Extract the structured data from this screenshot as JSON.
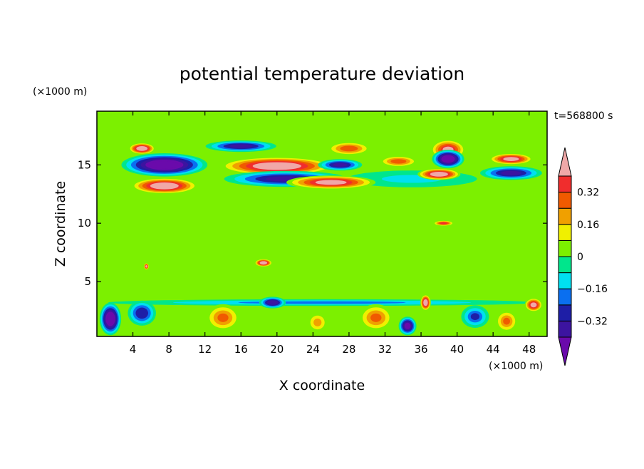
{
  "chart_data": {
    "type": "heatmap",
    "subtype": "filled-contour",
    "title": "potential temperature deviation",
    "xlabel": "X coordinate",
    "ylabel": "Z coordinate",
    "x_unit": "(×1000 m)",
    "z_unit": "(×1000 m)",
    "time_label": "t=568800 s",
    "xlim": [
      0,
      50
    ],
    "ylim": [
      0.3,
      19.6
    ],
    "x_ticks": [
      4,
      8,
      12,
      16,
      20,
      24,
      28,
      32,
      36,
      40,
      44,
      48
    ],
    "y_ticks": [
      5,
      10,
      15
    ],
    "colorbar": {
      "levels": [
        -0.48,
        -0.4,
        -0.32,
        -0.24,
        -0.16,
        -0.08,
        0,
        0.08,
        0.16,
        0.24,
        0.32,
        0.4,
        0.48
      ],
      "tick_labels": [
        {
          "value": 0.32,
          "label": "0.32"
        },
        {
          "value": 0.16,
          "label": "0.16"
        },
        {
          "value": 0,
          "label": "0"
        },
        {
          "value": -0.16,
          "label": "−0.16"
        },
        {
          "value": -0.32,
          "label": "−0.32"
        }
      ],
      "colors": [
        "#6a0aab",
        "#3c14a0",
        "#1e1ea6",
        "#0a6ff0",
        "#00e0f0",
        "#00e68c",
        "#7cf000",
        "#f0f000",
        "#f0a000",
        "#f05a00",
        "#f02d2d",
        "#f0a8a8"
      ],
      "extend": "both"
    },
    "background_color": "#7cf000",
    "features": [
      {
        "x": 7.5,
        "z": 15.0,
        "rx": 4.8,
        "rz": 1.0,
        "value": -0.52
      },
      {
        "x": 7.5,
        "z": 13.2,
        "rx": 3.8,
        "rz": 0.7,
        "value": 0.5
      },
      {
        "x": 5.0,
        "z": 16.4,
        "rx": 1.5,
        "rz": 0.5,
        "value": 0.5
      },
      {
        "x": 20.0,
        "z": 14.9,
        "rx": 6.5,
        "rz": 0.8,
        "value": 0.5
      },
      {
        "x": 26.0,
        "z": 13.5,
        "rx": 5.0,
        "rz": 0.6,
        "value": 0.45
      },
      {
        "x": 21.0,
        "z": 13.8,
        "rx": 7.0,
        "rz": 0.7,
        "value": -0.35
      },
      {
        "x": 16.0,
        "z": 16.6,
        "rx": 4.0,
        "rz": 0.5,
        "value": -0.35
      },
      {
        "x": 28.0,
        "z": 16.4,
        "rx": 2.5,
        "rz": 0.6,
        "value": 0.3
      },
      {
        "x": 27.0,
        "z": 15.0,
        "rx": 2.5,
        "rz": 0.5,
        "value": -0.35
      },
      {
        "x": 33.5,
        "z": 15.3,
        "rx": 2.2,
        "rz": 0.5,
        "value": 0.3
      },
      {
        "x": 39.0,
        "z": 16.3,
        "rx": 2.0,
        "rz": 0.9,
        "value": 0.4
      },
      {
        "x": 39.0,
        "z": 15.5,
        "rx": 1.8,
        "rz": 0.8,
        "value": -0.5
      },
      {
        "x": 38.0,
        "z": 14.2,
        "rx": 2.4,
        "rz": 0.5,
        "value": 0.5
      },
      {
        "x": 46.0,
        "z": 15.5,
        "rx": 2.5,
        "rz": 0.5,
        "value": 0.45
      },
      {
        "x": 46.0,
        "z": 14.3,
        "rx": 3.5,
        "rz": 0.6,
        "value": -0.35
      },
      {
        "x": 35.0,
        "z": 13.8,
        "rx": 8.0,
        "rz": 0.8,
        "value": -0.12
      },
      {
        "x": 25.0,
        "z": 12.3,
        "rx": 25.0,
        "rz": 0.5,
        "value": 0.02
      },
      {
        "x": 38.5,
        "z": 10.0,
        "rx": 1.2,
        "rz": 0.25,
        "value": 0.35
      },
      {
        "x": 18.5,
        "z": 6.6,
        "rx": 1.0,
        "rz": 0.35,
        "value": 0.5
      },
      {
        "x": 5.5,
        "z": 6.3,
        "rx": 0.3,
        "rz": 0.3,
        "value": 0.45
      },
      {
        "x": 1.5,
        "z": 1.8,
        "rx": 1.2,
        "rz": 1.4,
        "value": -0.52
      },
      {
        "x": 5.0,
        "z": 2.3,
        "rx": 1.6,
        "rz": 1.1,
        "value": -0.32
      },
      {
        "x": 14.0,
        "z": 1.9,
        "rx": 2.0,
        "rz": 1.2,
        "value": 0.26
      },
      {
        "x": 19.5,
        "z": 3.2,
        "rx": 1.5,
        "rz": 0.5,
        "value": -0.4
      },
      {
        "x": 24.5,
        "z": 1.5,
        "rx": 1.2,
        "rz": 0.9,
        "value": 0.2
      },
      {
        "x": 31.0,
        "z": 1.9,
        "rx": 2.0,
        "rz": 1.2,
        "value": 0.26
      },
      {
        "x": 34.5,
        "z": 1.2,
        "rx": 1.0,
        "rz": 0.8,
        "value": -0.45
      },
      {
        "x": 36.5,
        "z": 3.2,
        "rx": 0.6,
        "rz": 0.7,
        "value": 0.5
      },
      {
        "x": 42.0,
        "z": 2.0,
        "rx": 1.6,
        "rz": 1.0,
        "value": -0.25
      },
      {
        "x": 45.5,
        "z": 1.6,
        "rx": 1.3,
        "rz": 1.0,
        "value": 0.25
      },
      {
        "x": 48.5,
        "z": 3.0,
        "rx": 1.0,
        "rz": 0.6,
        "value": 0.45
      },
      {
        "x": 25.0,
        "z": 3.2,
        "rx": 25.0,
        "rz": 0.3,
        "value": -0.2
      },
      {
        "x": 25.0,
        "z": 8.0,
        "rx": 25.0,
        "rz": 3.5,
        "value": 0.05
      }
    ]
  }
}
